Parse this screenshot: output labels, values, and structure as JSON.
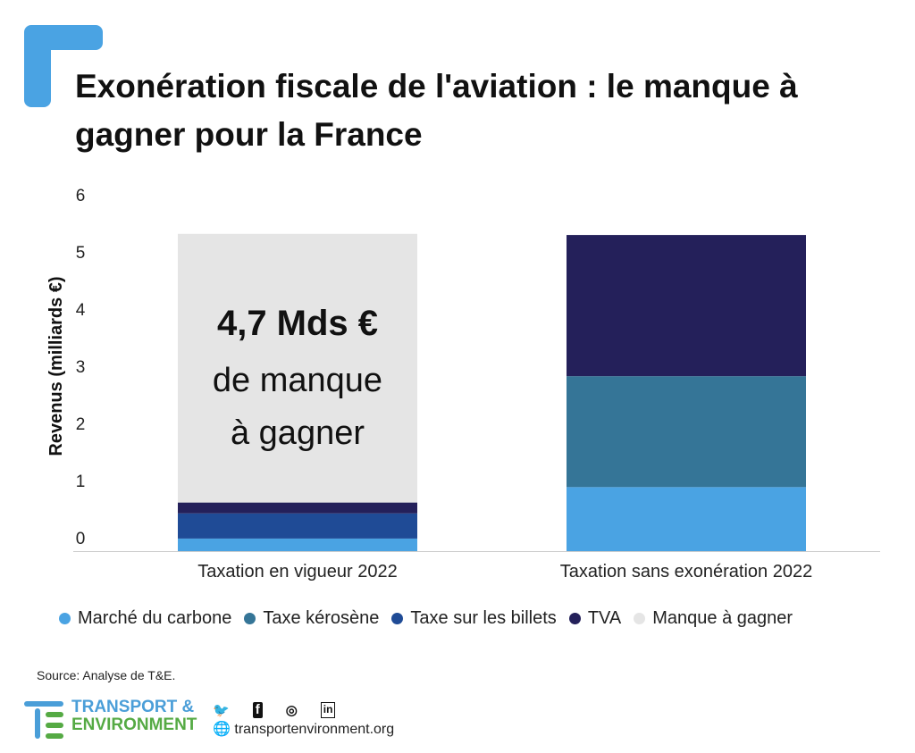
{
  "title": "Exonération fiscale de l'aviation : le manque à gagner pour la France",
  "chart_data": {
    "type": "bar",
    "stacked": true,
    "title": "Exonération fiscale de l'aviation : le manque à gagner pour la France",
    "xlabel": "",
    "ylabel": "Revenus (milliards €)",
    "ylim": [
      0,
      6
    ],
    "yticks": [
      "0",
      "1",
      "2",
      "3",
      "4",
      "5",
      "6"
    ],
    "categories": [
      "Taxation en vigueur 2022",
      "Taxation sans exonération 2022"
    ],
    "series": [
      {
        "name": "Marché du carbone",
        "color": "#4aa3e3",
        "values": [
          0.22,
          1.12
        ]
      },
      {
        "name": "Taxe kérosène",
        "color": "#357597",
        "values": [
          0,
          1.94
        ]
      },
      {
        "name": "Taxe sur les billets",
        "color": "#1f4b96",
        "values": [
          0.44,
          0
        ]
      },
      {
        "name": "TVA",
        "color": "#24205a",
        "values": [
          0.19,
          2.47
        ]
      },
      {
        "name": "Manque à gagner",
        "color": "#e5e5e5",
        "values": [
          4.7,
          0
        ]
      }
    ],
    "annotation": {
      "line1": "4,7 Mds €",
      "line2": "de manque",
      "line3": "à gagner"
    },
    "legend_position": "bottom",
    "grid": false
  },
  "footer": {
    "source": "Source: Analyse de T&E.",
    "logo_line1": "TRANSPORT &",
    "logo_line2": "ENVIRONMENT",
    "url": "transportenvironment.org",
    "social": [
      "twitter-icon",
      "facebook-icon",
      "instagram-icon",
      "linkedin-icon"
    ]
  }
}
